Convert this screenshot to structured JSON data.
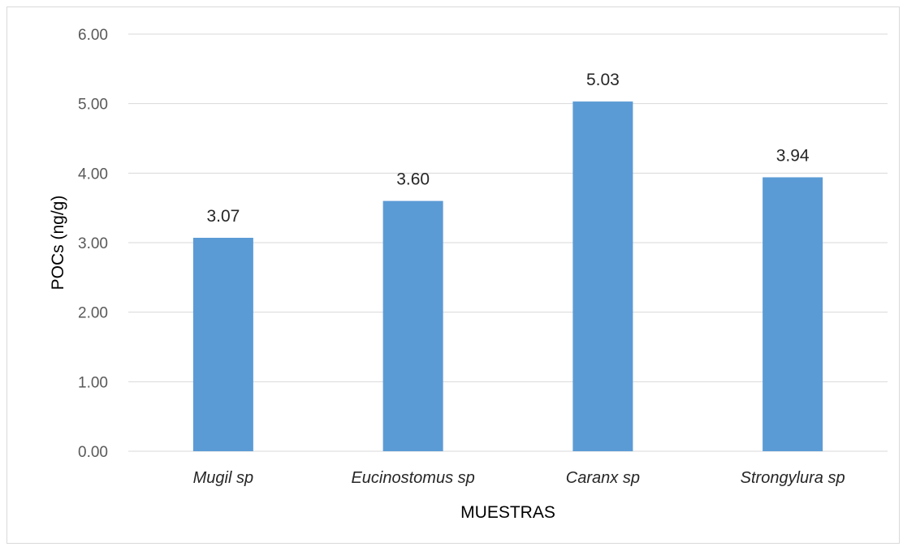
{
  "chart_data": {
    "type": "bar",
    "categories": [
      "Mugil sp",
      "Eucinostomus sp",
      "Caranx sp",
      "Strongylura sp"
    ],
    "values": [
      3.07,
      3.6,
      5.03,
      3.94
    ],
    "value_labels": [
      "3.07",
      "3.60",
      "5.03",
      "3.94"
    ],
    "title": "",
    "xlabel": "MUESTRAS",
    "ylabel": "POCs (ng/g)",
    "ylim": [
      0,
      6
    ],
    "yticks": [
      0,
      1,
      2,
      3,
      4,
      5,
      6
    ],
    "ytick_labels": [
      "0.00",
      "1.00",
      "2.00",
      "3.00",
      "4.00",
      "5.00",
      "6.00"
    ],
    "grid": true,
    "legend": "none",
    "bar_color": "#5b9bd5",
    "grid_color": "#d9d9d9"
  }
}
